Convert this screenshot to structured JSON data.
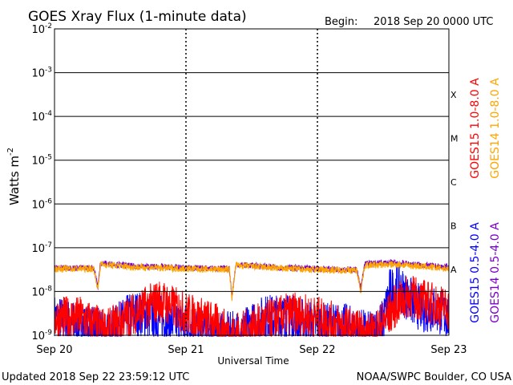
{
  "header": {
    "title": "GOES Xray Flux (1-minute data)",
    "begin_label": "Begin:",
    "begin_value": "2018 Sep 20 0000 UTC"
  },
  "footer": {
    "updated": "Updated 2018 Sep 22 23:59:12 UTC",
    "credit": "NOAA/SWPC Boulder, CO USA"
  },
  "colors": {
    "goes15_long": "#ff0000",
    "goes14_long": "#ffa500",
    "goes15_short": "#0000ff",
    "goes14_short": "#7a00c8",
    "grid": "#000000"
  },
  "chart_data": {
    "type": "line",
    "title": "GOES Xray Flux (1-minute data)",
    "xlabel": "Universal Time",
    "ylabel": "Watts m^-2",
    "yscale": "log",
    "ylim": [
      1e-09,
      0.01
    ],
    "xlim_days": [
      0,
      3
    ],
    "x_ticks": [
      {
        "day": 0,
        "label": "Sep 20"
      },
      {
        "day": 1,
        "label": "Sep 21"
      },
      {
        "day": 2,
        "label": "Sep 22"
      },
      {
        "day": 3,
        "label": "Sep 23"
      }
    ],
    "y_ticks": [
      {
        "exp": -2,
        "base": "10",
        "sup": "-2"
      },
      {
        "exp": -3,
        "base": "10",
        "sup": "-3"
      },
      {
        "exp": -4,
        "base": "10",
        "sup": "-4"
      },
      {
        "exp": -5,
        "base": "10",
        "sup": "-5"
      },
      {
        "exp": -6,
        "base": "10",
        "sup": "-6"
      },
      {
        "exp": -7,
        "base": "10",
        "sup": "-7"
      },
      {
        "exp": -8,
        "base": "10",
        "sup": "-8"
      },
      {
        "exp": -9,
        "base": "10",
        "sup": "-9"
      }
    ],
    "flare_classes": [
      {
        "label": "X",
        "exp": -3.5
      },
      {
        "label": "M",
        "exp": -4.5
      },
      {
        "label": "C",
        "exp": -5.5
      },
      {
        "label": "B",
        "exp": -6.5
      },
      {
        "label": "A",
        "exp": -7.5
      }
    ],
    "grid": true,
    "legend": [
      {
        "label": "GOES15 1.0-8.0 A",
        "color": "#ff0000"
      },
      {
        "label": "GOES14 1.0-8.0 A",
        "color": "#ffa500"
      },
      {
        "label": "GOES15 0.5-4.0 A",
        "color": "#0000ff"
      },
      {
        "label": "GOES14 0.5-4.0 A",
        "color": "#7a00c8"
      }
    ],
    "series": [
      {
        "name": "GOES15 0.5-4.0 A",
        "color": "#0000ff",
        "noise": 0.55,
        "points": [
          [
            0,
            -8.6
          ],
          [
            0.2,
            -8.8
          ],
          [
            0.4,
            -9.0
          ],
          [
            0.6,
            -8.5
          ],
          [
            0.8,
            -8.6
          ],
          [
            1.0,
            -8.8
          ],
          [
            1.2,
            -9.0
          ],
          [
            1.35,
            -9.0
          ],
          [
            1.45,
            -8.9
          ],
          [
            1.6,
            -8.6
          ],
          [
            1.8,
            -8.6
          ],
          [
            2.0,
            -8.8
          ],
          [
            2.2,
            -8.8
          ],
          [
            2.4,
            -9.0
          ],
          [
            2.5,
            -8.7
          ],
          [
            2.55,
            -8.0
          ],
          [
            2.62,
            -7.9
          ],
          [
            2.7,
            -8.2
          ],
          [
            2.8,
            -8.4
          ],
          [
            2.9,
            -8.4
          ],
          [
            3.0,
            -8.6
          ]
        ]
      },
      {
        "name": "GOES15 1.0-8.0 A",
        "color": "#ff0000",
        "noise": 0.5,
        "points": [
          [
            0,
            -8.6
          ],
          [
            0.2,
            -8.6
          ],
          [
            0.4,
            -8.9
          ],
          [
            0.6,
            -8.5
          ],
          [
            0.8,
            -8.2
          ],
          [
            1.0,
            -8.5
          ],
          [
            1.2,
            -8.7
          ],
          [
            1.35,
            -9.0
          ],
          [
            1.45,
            -8.9
          ],
          [
            1.6,
            -8.7
          ],
          [
            1.8,
            -8.5
          ],
          [
            2.0,
            -8.6
          ],
          [
            2.2,
            -8.8
          ],
          [
            2.4,
            -9.0
          ],
          [
            2.5,
            -8.7
          ],
          [
            2.6,
            -8.3
          ],
          [
            2.7,
            -8.1
          ],
          [
            2.8,
            -8.2
          ],
          [
            2.9,
            -8.3
          ],
          [
            3.0,
            -8.4
          ]
        ]
      },
      {
        "name": "GOES14 0.5-4.0 A",
        "color": "#7a00c8",
        "noise": 0.07,
        "points": [
          [
            0,
            -7.46
          ],
          [
            0.3,
            -7.46
          ],
          [
            0.33,
            -7.9
          ],
          [
            0.35,
            -7.35
          ],
          [
            0.6,
            -7.42
          ],
          [
            1.0,
            -7.46
          ],
          [
            1.33,
            -7.48
          ],
          [
            1.35,
            -8.1
          ],
          [
            1.38,
            -7.38
          ],
          [
            1.7,
            -7.45
          ],
          [
            2.0,
            -7.48
          ],
          [
            2.3,
            -7.5
          ],
          [
            2.33,
            -7.95
          ],
          [
            2.36,
            -7.36
          ],
          [
            2.6,
            -7.34
          ],
          [
            2.8,
            -7.4
          ],
          [
            3.0,
            -7.45
          ]
        ]
      },
      {
        "name": "GOES14 1.0-8.0 A",
        "color": "#ffa500",
        "noise": 0.08,
        "points": [
          [
            0,
            -7.48
          ],
          [
            0.3,
            -7.48
          ],
          [
            0.33,
            -7.95
          ],
          [
            0.35,
            -7.38
          ],
          [
            0.6,
            -7.44
          ],
          [
            1.0,
            -7.48
          ],
          [
            1.33,
            -7.5
          ],
          [
            1.35,
            -8.15
          ],
          [
            1.38,
            -7.4
          ],
          [
            1.7,
            -7.47
          ],
          [
            2.0,
            -7.5
          ],
          [
            2.3,
            -7.52
          ],
          [
            2.33,
            -8.0
          ],
          [
            2.36,
            -7.4
          ],
          [
            2.6,
            -7.38
          ],
          [
            2.8,
            -7.43
          ],
          [
            3.0,
            -7.48
          ]
        ]
      }
    ]
  }
}
